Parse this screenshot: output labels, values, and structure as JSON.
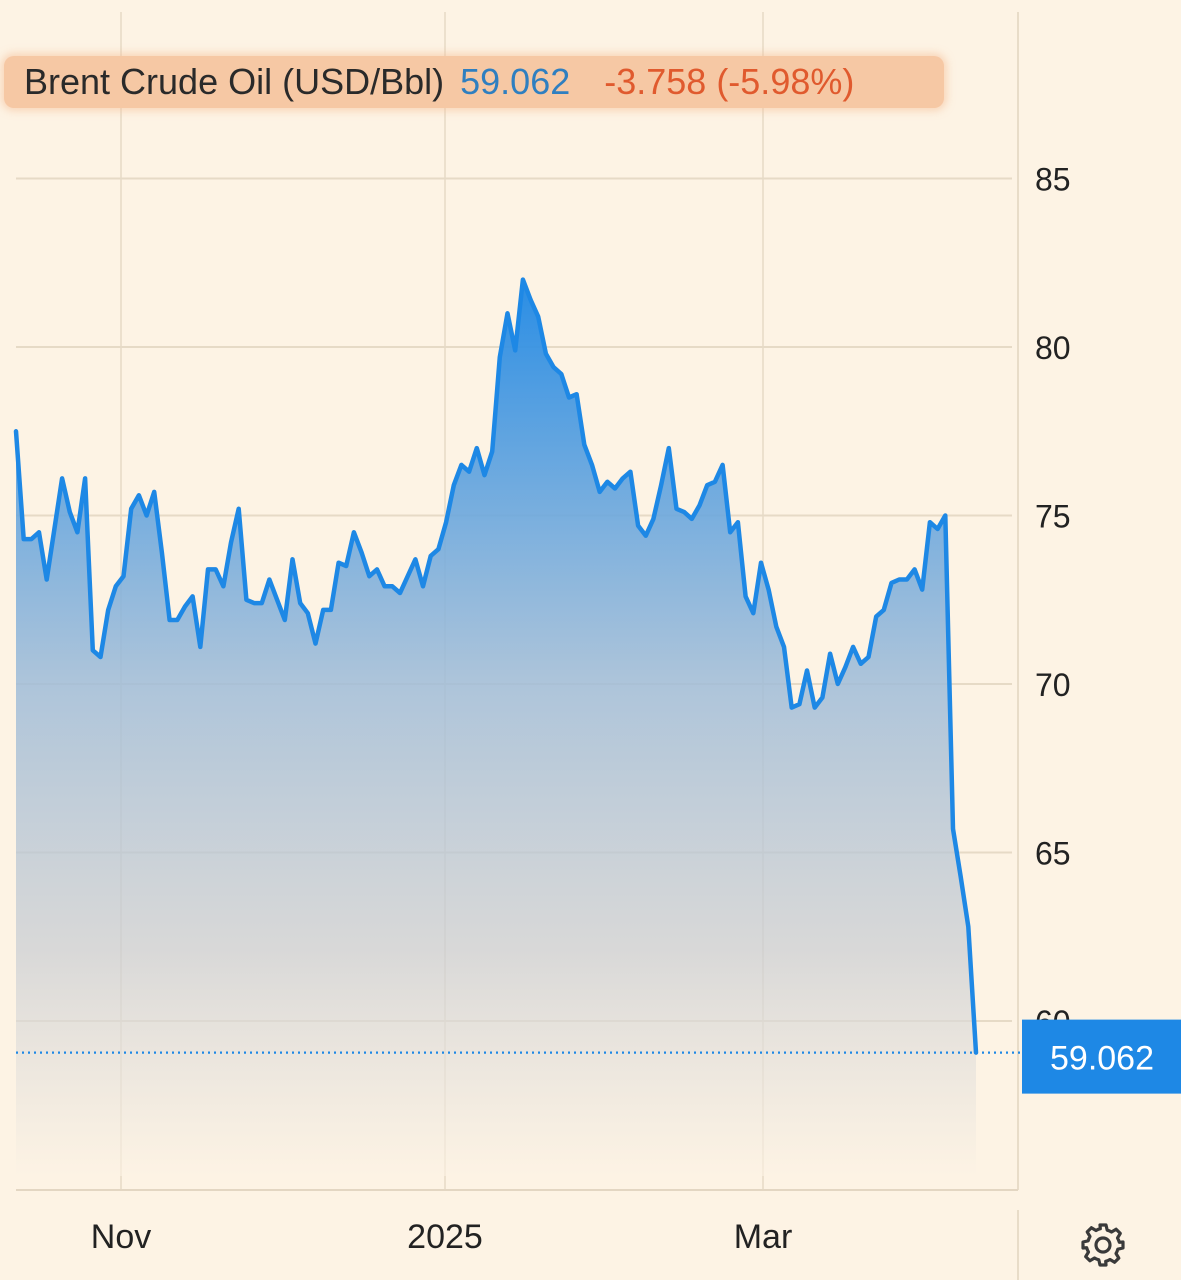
{
  "header": {
    "title": "Brent Crude Oil (USD/Bbl)",
    "price": "59.062",
    "change": "-3.758 (-5.98%)"
  },
  "last_price_label": "59.062",
  "colors": {
    "background": "#fdf3e4",
    "line": "#1e88e5",
    "price_badge": "#1e88e5",
    "change_negative": "#e05a2e",
    "price_text": "#2f7fc0",
    "header_highlight": "#f6c8a4"
  },
  "icons": {
    "settings": "gear-icon"
  },
  "chart_data": {
    "type": "area",
    "title": "Brent Crude Oil (USD/Bbl)",
    "xlabel": "",
    "ylabel": "",
    "x_ticks": [
      "Nov",
      "2025",
      "Mar"
    ],
    "y_ticks": [
      60,
      65,
      70,
      75,
      80,
      85
    ],
    "ylim": [
      54.5,
      89
    ],
    "y_axis_position": "right",
    "grid": true,
    "last_value": 59.062,
    "series": [
      {
        "name": "",
        "values": [
          77.5,
          74.3,
          74.3,
          74.5,
          73.1,
          74.6,
          76.1,
          75.1,
          74.5,
          76.1,
          71.0,
          70.8,
          72.2,
          72.9,
          73.2,
          75.2,
          75.6,
          75.0,
          75.7,
          73.9,
          71.9,
          71.9,
          72.3,
          72.6,
          71.1,
          73.4,
          73.4,
          72.9,
          74.2,
          75.2,
          72.5,
          72.4,
          72.4,
          73.1,
          72.5,
          71.9,
          73.7,
          72.4,
          72.1,
          71.2,
          72.2,
          72.2,
          73.6,
          73.5,
          74.5,
          73.9,
          73.2,
          73.4,
          72.9,
          72.9,
          72.7,
          73.2,
          73.7,
          72.9,
          73.8,
          74.0,
          74.8,
          75.9,
          76.5,
          76.3,
          77.0,
          76.2,
          76.9,
          79.7,
          81.0,
          79.9,
          82.0,
          81.4,
          80.9,
          79.8,
          79.4,
          79.2,
          78.5,
          78.6,
          77.1,
          76.5,
          75.7,
          76.0,
          75.8,
          76.1,
          76.3,
          74.7,
          74.4,
          74.9,
          75.9,
          77.0,
          75.2,
          75.1,
          74.9,
          75.3,
          75.9,
          76.0,
          76.5,
          74.5,
          74.8,
          72.6,
          72.1,
          73.6,
          72.8,
          71.7,
          71.1,
          69.3,
          69.4,
          70.4,
          69.3,
          69.6,
          70.9,
          70.0,
          70.5,
          71.1,
          70.6,
          70.8,
          72.0,
          72.2,
          73.0,
          73.1,
          73.1,
          73.4,
          72.8,
          74.8,
          74.6,
          75.0,
          65.7,
          64.3,
          62.8,
          59.062
        ]
      }
    ]
  }
}
